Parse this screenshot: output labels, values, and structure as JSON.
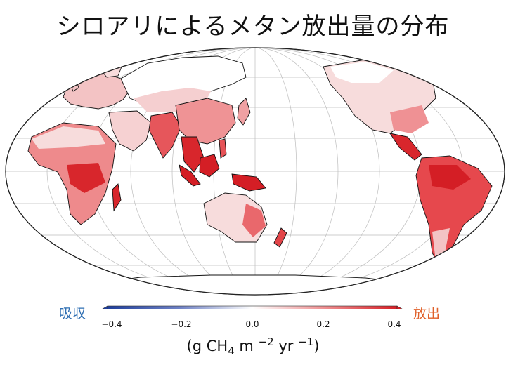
{
  "title": "シロアリによるメタン放出量の分布",
  "colorbar": {
    "left_label": "吸収",
    "right_label": "放出",
    "ticks": [
      "−0.4",
      "−0.2",
      "0.0",
      "0.2",
      "0.4"
    ],
    "unit": {
      "prefix": "(g CH",
      "sub": "4",
      "mid": " m ",
      "sup1": "−2",
      "mid2": " yr ",
      "sup2": "−1",
      "suffix": ")"
    },
    "colors": {
      "min": "#1f3f9c",
      "mid": "#ffffff",
      "max": "#d81f26"
    }
  },
  "map_colors": {
    "low": "#f7dcdc",
    "medium": "#ee8f91",
    "high": "#e43a3f",
    "very_high": "#c7151c",
    "coast": "#111111"
  }
}
